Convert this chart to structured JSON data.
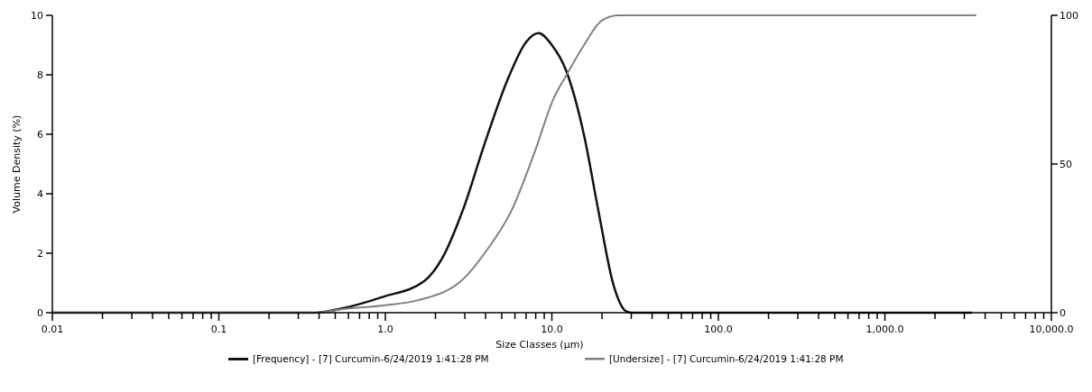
{
  "chart_data": {
    "type": "line",
    "xlabel": "Size Classes (µm)",
    "ylabel": "Volume Density (%)",
    "log": "x",
    "xlim": [
      0.01,
      10000
    ],
    "ylim": [
      0,
      10
    ],
    "y2lim": [
      0,
      100
    ],
    "xticks": [
      0.01,
      {
        "value": 0.02,
        "label": null
      },
      {
        "value": 0.03,
        "label": null
      },
      {
        "value": 0.04,
        "label": null
      },
      {
        "value": 0.05,
        "label": null
      },
      {
        "value": 0.06,
        "label": null
      },
      {
        "value": 0.07,
        "label": null
      },
      {
        "value": 0.08,
        "label": null
      },
      {
        "value": 0.09,
        "label": null
      },
      0.1,
      {
        "value": 0.2,
        "label": null
      },
      {
        "value": 0.3,
        "label": null
      },
      {
        "value": 0.4,
        "label": null
      },
      {
        "value": 0.5,
        "label": null
      },
      {
        "value": 0.6,
        "label": null
      },
      {
        "value": 0.7,
        "label": null
      },
      {
        "value": 0.8,
        "label": null
      },
      {
        "value": 0.9,
        "label": null
      },
      {
        "value": 1,
        "label": "1.0"
      },
      {
        "value": 2,
        "label": null
      },
      {
        "value": 3,
        "label": null
      },
      {
        "value": 4,
        "label": null
      },
      {
        "value": 5,
        "label": null
      },
      {
        "value": 6,
        "label": null
      },
      {
        "value": 7,
        "label": null
      },
      {
        "value": 8,
        "label": null
      },
      {
        "value": 9,
        "label": null
      },
      {
        "value": 10,
        "label": "10.0"
      },
      {
        "value": 20,
        "label": null
      },
      {
        "value": 30,
        "label": null
      },
      {
        "value": 40,
        "label": null
      },
      {
        "value": 50,
        "label": null
      },
      {
        "value": 60,
        "label": null
      },
      {
        "value": 70,
        "label": null
      },
      {
        "value": 80,
        "label": null
      },
      {
        "value": 90,
        "label": null
      },
      {
        "value": 100,
        "label": "100.0"
      },
      {
        "value": 200,
        "label": null
      },
      {
        "value": 300,
        "label": null
      },
      {
        "value": 400,
        "label": null
      },
      {
        "value": 500,
        "label": null
      },
      {
        "value": 600,
        "label": null
      },
      {
        "value": 700,
        "label": null
      },
      {
        "value": 800,
        "label": null
      },
      {
        "value": 900,
        "label": null
      },
      {
        "value": 1000,
        "label": "1,000.0"
      },
      {
        "value": 2000,
        "label": null
      },
      {
        "value": 3000,
        "label": null
      },
      {
        "value": 4000,
        "label": null
      },
      {
        "value": 5000,
        "label": null
      },
      {
        "value": 6000,
        "label": null
      },
      {
        "value": 7000,
        "label": null
      },
      {
        "value": 8000,
        "label": null
      },
      {
        "value": 9000,
        "label": null
      },
      {
        "value": 10000,
        "label": "10,000.0"
      }
    ],
    "yticks": [
      0,
      2,
      4,
      6,
      8,
      10
    ],
    "y2ticks": [
      0,
      50,
      100
    ],
    "grid": false,
    "legend": "bottom",
    "marker": "none",
    "line_style": "solid",
    "series": [
      {
        "name": "[Frequency] - [7] Curcumin-6/24/2019 1:41:28 PM",
        "color": "#111111",
        "x": [
          0.01,
          0.38,
          0.556,
          0.95,
          1.71,
          2.19,
          2.92,
          3.94,
          5.46,
          7.0,
          8.33,
          10.0,
          12.1,
          15.6,
          19.0,
          23.5,
          27.7,
          30,
          3300
        ],
        "values": [
          0,
          0,
          0.15,
          0.52,
          1.06,
          1.82,
          3.45,
          5.67,
          7.88,
          9.1,
          9.4,
          9.0,
          8.18,
          5.97,
          3.45,
          0.91,
          0.06,
          0,
          0
        ]
      },
      {
        "name": "[Undersize] - [7] Curcumin-6/24/2019 1:41:28 PM",
        "color": "#808080",
        "axis": "y2",
        "x": [
          0.01,
          0.38,
          0.556,
          1.0,
          1.57,
          2.92,
          4.09,
          5.74,
          7.94,
          10.2,
          12.1,
          15.6,
          19.9,
          25,
          3500
        ],
        "values": [
          0,
          0,
          1.2,
          2.5,
          4.2,
          11.2,
          21.2,
          34.5,
          54.5,
          71.8,
          79.4,
          90,
          98.2,
          100,
          100
        ]
      }
    ]
  }
}
